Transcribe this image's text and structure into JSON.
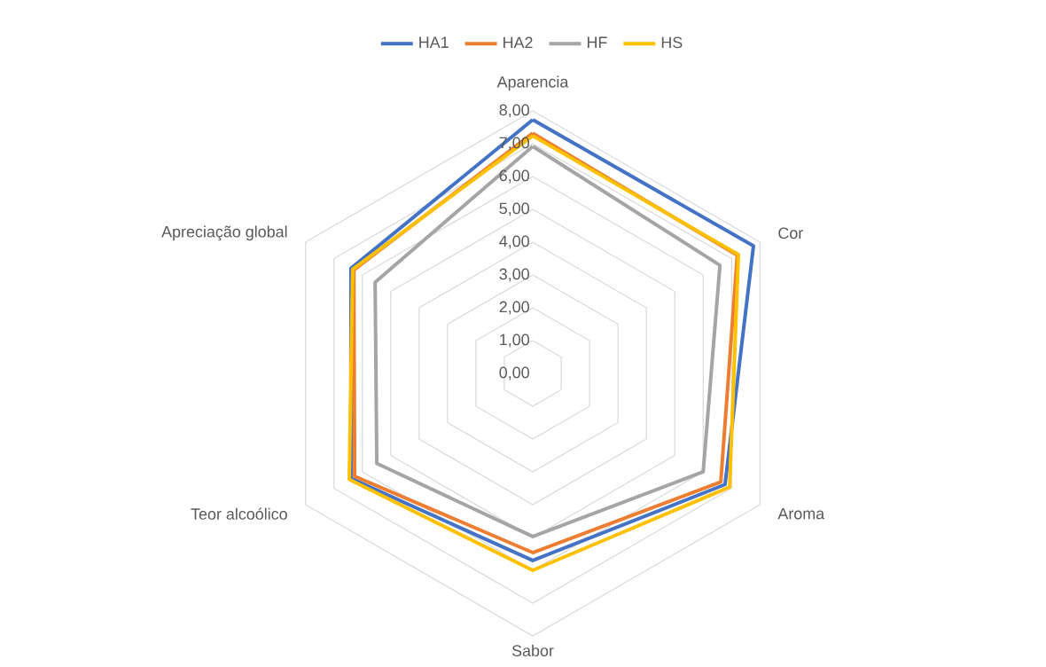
{
  "chart_data": {
    "type": "radar",
    "categories": [
      "Aparencia",
      "Cor",
      "Aroma",
      "Sabor",
      "Teor alcoólico",
      "Apreciação global"
    ],
    "series": [
      {
        "name": "HA1",
        "color": "#4472c4",
        "values": [
          7.73,
          7.77,
          6.77,
          5.7,
          6.4,
          6.4
        ]
      },
      {
        "name": "HA2",
        "color": "#ed7d31",
        "values": [
          7.32,
          7.2,
          6.62,
          5.46,
          6.27,
          6.3
        ]
      },
      {
        "name": "HF",
        "color": "#a5a5a5",
        "values": [
          6.92,
          6.59,
          6.0,
          4.97,
          5.49,
          5.55
        ]
      },
      {
        "name": "HS",
        "color": "#ffc000",
        "values": [
          7.24,
          7.24,
          6.93,
          6.0,
          6.46,
          6.34
        ]
      }
    ],
    "ylim": [
      0,
      8
    ],
    "yticks": [
      {
        "value": 0,
        "label": "0,00"
      },
      {
        "value": 1,
        "label": "1,00"
      },
      {
        "value": 2,
        "label": "2,00"
      },
      {
        "value": 3,
        "label": "3,00"
      },
      {
        "value": 4,
        "label": "4,00"
      },
      {
        "value": 5,
        "label": "5,00"
      },
      {
        "value": 6,
        "label": "6,00"
      },
      {
        "value": 7,
        "label": "7,00"
      },
      {
        "value": 8,
        "label": "8,00"
      }
    ],
    "grid": true,
    "legend": "top",
    "marker": "none",
    "line_style": "solid"
  }
}
